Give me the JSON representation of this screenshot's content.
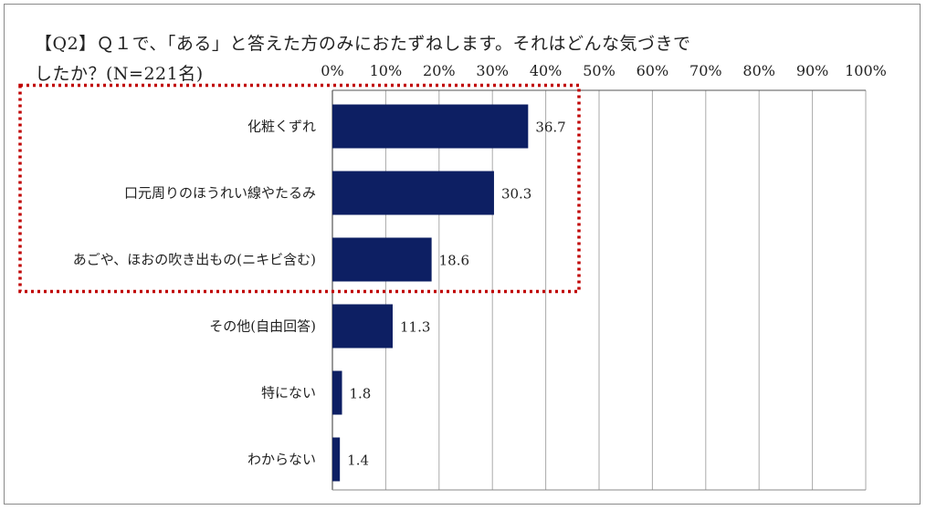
{
  "title_line1": "【Q2】Ｑ１で、「ある」と答えた方のみにおたずねします。それはどんな気づきで",
  "title_line2": "したか？(N=221名)",
  "colors": {
    "bar": "#0d1f63",
    "highlight": "#c00000",
    "grid": "#aaaaaa"
  },
  "chart_data": {
    "type": "bar",
    "orientation": "horizontal",
    "title": "【Q2】Ｑ１で、「ある」と答えた方のみにおたずねします。それはどんな気づきでしたか？(N=221名)",
    "categories": [
      "化粧くずれ",
      "口元周りのほうれい線やたるみ",
      "あごや、ほおの吹き出もの(ニキビ含む)",
      "その他(自由回答)",
      "特にない",
      "わからない"
    ],
    "values": [
      36.7,
      30.3,
      18.6,
      11.3,
      1.8,
      1.4
    ],
    "value_labels": [
      "36.7",
      "30.3",
      "18.6",
      "11.3",
      "1.8",
      "1.4"
    ],
    "xlim": [
      0,
      100
    ],
    "xticks": [
      0,
      10,
      20,
      30,
      40,
      50,
      60,
      70,
      80,
      90,
      100
    ],
    "xtick_labels": [
      "0%",
      "10%",
      "20%",
      "30%",
      "40%",
      "50%",
      "60%",
      "70%",
      "80%",
      "90%",
      "100%"
    ],
    "x_axis_position": "top",
    "grid": true,
    "highlighted_categories": [
      0,
      1,
      2
    ],
    "highlight_style": "dotted-red-box"
  }
}
